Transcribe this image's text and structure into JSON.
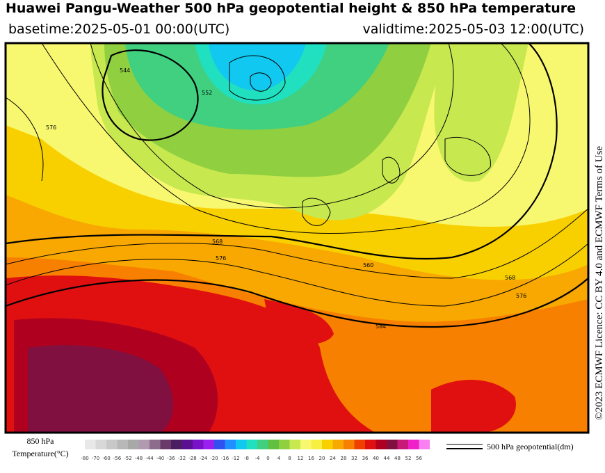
{
  "header": {
    "title": "Huawei Pangu-Weather 500 hPa geopotential height & 850 hPa temperature",
    "basetime": "basetime:2025-05-01 00:00(UTC)",
    "validtime": "validtime:2025-05-03 12:00(UTC)"
  },
  "credit": "©2023 ECMWF Licence: CC BY 4.0 and ECMWF Terms of Use",
  "contour_labels": [
    "544",
    "552",
    "576",
    "568",
    "576",
    "560",
    "568",
    "576",
    "584"
  ],
  "legend": {
    "label_line1": "850 hPa",
    "label_line2": "Temperature(°C)",
    "ticks": [
      -80,
      -70,
      -60,
      -56,
      -52,
      -48,
      -44,
      -40,
      -36,
      -32,
      -28,
      -24,
      -20,
      -16,
      -12,
      -8,
      -4,
      0,
      4,
      8,
      12,
      16,
      20,
      24,
      28,
      32,
      36,
      40,
      44,
      48,
      52,
      56
    ],
    "colors": [
      "#e8e8e8",
      "#d8d8d8",
      "#c8c8c8",
      "#b8b8b8",
      "#a8a8a8",
      "#b09ab0",
      "#8c6e8c",
      "#6a3a6a",
      "#4a1e60",
      "#5a1090",
      "#7a10c8",
      "#9a20f0",
      "#3050f0",
      "#1e90ff",
      "#10c8f0",
      "#20e0c0",
      "#40d080",
      "#60c040",
      "#90d040",
      "#c8e850",
      "#f8f870",
      "#f8f040",
      "#f8d000",
      "#f8a800",
      "#f88000",
      "#f04000",
      "#e01010",
      "#b00020",
      "#801040",
      "#c81878",
      "#f020c8",
      "#f880f0"
    ],
    "line_label": "500 hPa geopotential(dm)"
  }
}
